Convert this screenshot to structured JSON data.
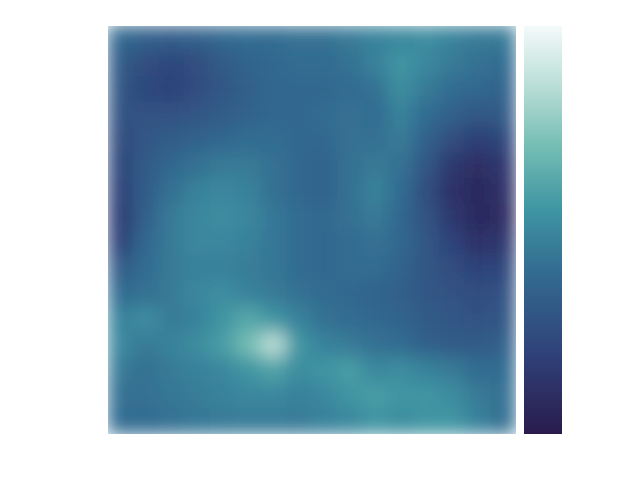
{
  "chart_data": {
    "type": "heatmap",
    "tick_labels": false,
    "color_range": [
      0,
      1
    ],
    "cells": [
      [
        0.38,
        0.35,
        0.33,
        0.35,
        0.38,
        0.4,
        0.4,
        0.42,
        0.42,
        0.45,
        0.48,
        0.5,
        0.52,
        0.48,
        0.45,
        0.45
      ],
      [
        0.32,
        0.25,
        0.22,
        0.25,
        0.32,
        0.36,
        0.38,
        0.4,
        0.4,
        0.42,
        0.48,
        0.55,
        0.5,
        0.45,
        0.42,
        0.4
      ],
      [
        0.3,
        0.22,
        0.2,
        0.25,
        0.3,
        0.35,
        0.38,
        0.38,
        0.38,
        0.4,
        0.42,
        0.52,
        0.45,
        0.4,
        0.38,
        0.36
      ],
      [
        0.28,
        0.28,
        0.28,
        0.3,
        0.33,
        0.36,
        0.38,
        0.38,
        0.4,
        0.42,
        0.4,
        0.48,
        0.4,
        0.35,
        0.3,
        0.32
      ],
      [
        0.25,
        0.3,
        0.33,
        0.36,
        0.38,
        0.4,
        0.4,
        0.38,
        0.38,
        0.42,
        0.42,
        0.45,
        0.35,
        0.25,
        0.18,
        0.22
      ],
      [
        0.22,
        0.32,
        0.38,
        0.42,
        0.45,
        0.45,
        0.42,
        0.38,
        0.36,
        0.42,
        0.45,
        0.42,
        0.3,
        0.15,
        0.1,
        0.15
      ],
      [
        0.2,
        0.33,
        0.42,
        0.48,
        0.5,
        0.48,
        0.42,
        0.38,
        0.36,
        0.42,
        0.48,
        0.4,
        0.25,
        0.12,
        0.08,
        0.12
      ],
      [
        0.18,
        0.35,
        0.45,
        0.5,
        0.52,
        0.5,
        0.44,
        0.4,
        0.38,
        0.42,
        0.45,
        0.38,
        0.28,
        0.15,
        0.08,
        0.1
      ],
      [
        0.2,
        0.38,
        0.45,
        0.5,
        0.5,
        0.48,
        0.44,
        0.4,
        0.38,
        0.4,
        0.42,
        0.38,
        0.3,
        0.2,
        0.12,
        0.15
      ],
      [
        0.32,
        0.4,
        0.45,
        0.48,
        0.48,
        0.46,
        0.44,
        0.4,
        0.38,
        0.4,
        0.4,
        0.36,
        0.3,
        0.25,
        0.2,
        0.22
      ],
      [
        0.4,
        0.42,
        0.45,
        0.5,
        0.52,
        0.48,
        0.45,
        0.42,
        0.4,
        0.38,
        0.36,
        0.35,
        0.3,
        0.28,
        0.25,
        0.28
      ],
      [
        0.48,
        0.52,
        0.45,
        0.48,
        0.55,
        0.62,
        0.55,
        0.48,
        0.42,
        0.4,
        0.38,
        0.36,
        0.32,
        0.3,
        0.28,
        0.3
      ],
      [
        0.5,
        0.45,
        0.48,
        0.52,
        0.58,
        0.7,
        0.85,
        0.55,
        0.48,
        0.45,
        0.42,
        0.4,
        0.35,
        0.32,
        0.32,
        0.35
      ],
      [
        0.45,
        0.42,
        0.45,
        0.48,
        0.5,
        0.55,
        0.6,
        0.52,
        0.55,
        0.58,
        0.5,
        0.52,
        0.48,
        0.45,
        0.4,
        0.4
      ],
      [
        0.42,
        0.42,
        0.44,
        0.46,
        0.48,
        0.5,
        0.5,
        0.48,
        0.5,
        0.55,
        0.58,
        0.55,
        0.55,
        0.52,
        0.45,
        0.42
      ],
      [
        0.4,
        0.4,
        0.42,
        0.44,
        0.45,
        0.46,
        0.46,
        0.45,
        0.48,
        0.5,
        0.55,
        0.52,
        0.55,
        0.55,
        0.48,
        0.42
      ]
    ]
  }
}
